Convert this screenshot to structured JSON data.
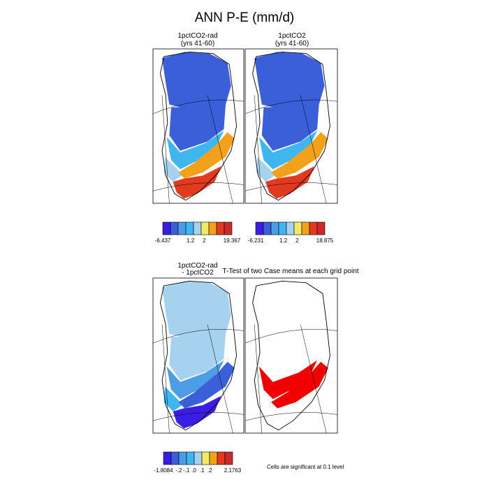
{
  "chart_data": {
    "type": "heatmap",
    "title": "ANN P-E (mm/d)",
    "colors": {
      "palette": [
        "#3a1ee6",
        "#3a5fd9",
        "#4d9de6",
        "#3fb6f0",
        "#a6d2ef",
        "#f2ea66",
        "#f2a21a",
        "#e23a1f",
        "#cc2a2a"
      ],
      "significant": "#f00000",
      "land_outline": "#000000",
      "frame": "#000000"
    },
    "panels": [
      {
        "title_line1": "1pctCO2-rad",
        "title_line2": "(yrs 41-60)",
        "colorbar": {
          "labels": [
            "-6.437",
            "1.2",
            "2",
            "19.367"
          ]
        },
        "fields": [
          {
            "region": "north",
            "level": 1
          },
          {
            "region": "interior",
            "level": 1
          },
          {
            "region": "south-central",
            "level": 3
          },
          {
            "region": "southwest-interior",
            "level": 4
          },
          {
            "region": "southeast-margin",
            "level": 6
          },
          {
            "region": "south-tip",
            "level": 7
          }
        ]
      },
      {
        "title_line1": "1pctCO2",
        "title_line2": "(yrs 41-60)",
        "colorbar": {
          "labels": [
            "-6.231",
            "1.2",
            "2",
            "18.875"
          ]
        },
        "fields": [
          {
            "region": "north",
            "level": 1
          },
          {
            "region": "interior",
            "level": 1
          },
          {
            "region": "south-central",
            "level": 3
          },
          {
            "region": "southwest-interior",
            "level": 4
          },
          {
            "region": "southeast-margin",
            "level": 6
          },
          {
            "region": "south-tip",
            "level": 7
          }
        ]
      },
      {
        "title_line1": "1pctCO2-rad",
        "title_line2": "- 1pctCO2",
        "colorbar": {
          "labels": [
            "-1.8084",
            "-.2",
            "-.1",
            ".0",
            ".1",
            ".2",
            "2.1763"
          ]
        },
        "fields": [
          {
            "region": "north",
            "level": 4
          },
          {
            "region": "interior",
            "level": 4
          },
          {
            "region": "south-central",
            "level": 2
          },
          {
            "region": "southwest-interior",
            "level": 3
          },
          {
            "region": "southeast-margin",
            "level": 1
          },
          {
            "region": "south-tip",
            "level": 0
          }
        ]
      },
      {
        "title_line1": "T-Test of two Case means at each grid point",
        "fields": [
          {
            "region": "south-central",
            "significant": true
          },
          {
            "region": "southeast-margin",
            "significant": true
          }
        ]
      }
    ],
    "note": "Cells are significant at 0.1 level"
  }
}
